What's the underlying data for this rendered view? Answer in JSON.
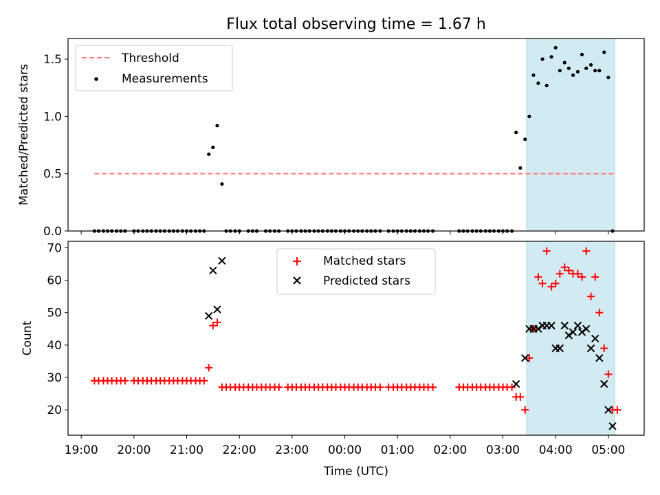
{
  "figure": {
    "title": "Flux total observing time = 1.67 h",
    "time_ticks": [
      "19:00",
      "20:00",
      "21:00",
      "22:00",
      "23:00",
      "00:00",
      "01:00",
      "02:00",
      "03:00",
      "04:00",
      "05:00"
    ],
    "time_tick_hours": [
      19,
      20,
      21,
      22,
      23,
      24,
      25,
      26,
      27,
      28,
      29
    ],
    "xlabel": "Time (UTC)",
    "xlim_hours": [
      18.75,
      29.68
    ],
    "shade_hours": [
      27.45,
      29.12
    ],
    "colors": {
      "shade": "#add8e6",
      "threshold": "#ff7b7b",
      "matched": "#ff0000",
      "predicted": "#000000",
      "measurement": "#000000"
    }
  },
  "chart_data": [
    {
      "type": "scatter",
      "ylabel": "Matched/Predicted stars",
      "ylim": [
        0,
        1.68
      ],
      "yticks": [
        "0.0",
        "0.5",
        "1.0",
        "1.5"
      ],
      "ytick_values": [
        0,
        0.5,
        1.0,
        1.5
      ],
      "legend_placement": "top-left",
      "threshold": {
        "name": "Threshold",
        "y": 0.5,
        "x_range_hours": [
          19.25,
          29.12
        ]
      },
      "series": [
        {
          "name": "Measurements",
          "points": [
            [
              19.25,
              0
            ],
            [
              19.33,
              0
            ],
            [
              19.42,
              0
            ],
            [
              19.5,
              0
            ],
            [
              19.58,
              0
            ],
            [
              19.67,
              0
            ],
            [
              19.75,
              0
            ],
            [
              19.83,
              0
            ],
            [
              20.0,
              0
            ],
            [
              20.08,
              0
            ],
            [
              20.17,
              0
            ],
            [
              20.25,
              0
            ],
            [
              20.33,
              0
            ],
            [
              20.42,
              0
            ],
            [
              20.5,
              0
            ],
            [
              20.58,
              0
            ],
            [
              20.67,
              0
            ],
            [
              20.75,
              0
            ],
            [
              20.83,
              0
            ],
            [
              20.92,
              0
            ],
            [
              21.0,
              0
            ],
            [
              21.08,
              0
            ],
            [
              21.17,
              0
            ],
            [
              21.25,
              0
            ],
            [
              21.33,
              0
            ],
            [
              21.42,
              0.67
            ],
            [
              21.5,
              0.73
            ],
            [
              21.58,
              0.92
            ],
            [
              21.67,
              0.41
            ],
            [
              21.75,
              0
            ],
            [
              21.83,
              0
            ],
            [
              21.92,
              0
            ],
            [
              22.0,
              0
            ],
            [
              22.17,
              0
            ],
            [
              22.25,
              0
            ],
            [
              22.33,
              0
            ],
            [
              22.5,
              0
            ],
            [
              22.58,
              0
            ],
            [
              22.67,
              0
            ],
            [
              22.75,
              0
            ],
            [
              22.92,
              0
            ],
            [
              23.0,
              0
            ],
            [
              23.08,
              0
            ],
            [
              23.17,
              0
            ],
            [
              23.25,
              0
            ],
            [
              23.33,
              0
            ],
            [
              23.42,
              0
            ],
            [
              23.5,
              0
            ],
            [
              23.58,
              0
            ],
            [
              23.67,
              0
            ],
            [
              23.75,
              0
            ],
            [
              23.83,
              0
            ],
            [
              23.92,
              0
            ],
            [
              24.0,
              0
            ],
            [
              24.08,
              0
            ],
            [
              24.17,
              0
            ],
            [
              24.25,
              0
            ],
            [
              24.33,
              0
            ],
            [
              24.42,
              0
            ],
            [
              24.5,
              0
            ],
            [
              24.58,
              0
            ],
            [
              24.67,
              0
            ],
            [
              24.83,
              0
            ],
            [
              24.92,
              0
            ],
            [
              25.0,
              0
            ],
            [
              25.08,
              0
            ],
            [
              25.17,
              0
            ],
            [
              25.25,
              0
            ],
            [
              25.33,
              0
            ],
            [
              25.42,
              0
            ],
            [
              25.5,
              0
            ],
            [
              25.58,
              0
            ],
            [
              25.67,
              0
            ],
            [
              26.17,
              0
            ],
            [
              26.25,
              0
            ],
            [
              26.33,
              0
            ],
            [
              26.42,
              0
            ],
            [
              26.5,
              0
            ],
            [
              26.58,
              0
            ],
            [
              26.67,
              0
            ],
            [
              26.75,
              0
            ],
            [
              26.83,
              0
            ],
            [
              26.92,
              0
            ],
            [
              27.0,
              0
            ],
            [
              27.08,
              0
            ],
            [
              27.17,
              0
            ],
            [
              27.25,
              0.86
            ],
            [
              27.33,
              0.55
            ],
            [
              27.42,
              0.8
            ],
            [
              27.5,
              1.0
            ],
            [
              27.58,
              1.36
            ],
            [
              27.67,
              1.29
            ],
            [
              27.75,
              1.5
            ],
            [
              27.83,
              1.27
            ],
            [
              27.92,
              1.52
            ],
            [
              28.0,
              1.6
            ],
            [
              28.08,
              1.4
            ],
            [
              28.17,
              1.47
            ],
            [
              28.25,
              1.42
            ],
            [
              28.33,
              1.36
            ],
            [
              28.42,
              1.39
            ],
            [
              28.5,
              1.54
            ],
            [
              28.58,
              1.42
            ],
            [
              28.67,
              1.45
            ],
            [
              28.75,
              1.4
            ],
            [
              28.83,
              1.4
            ],
            [
              28.92,
              1.56
            ],
            [
              29.0,
              1.34
            ],
            [
              29.08,
              0
            ]
          ]
        }
      ]
    },
    {
      "type": "scatter",
      "ylabel": "Count",
      "ylim": [
        12.2,
        72
      ],
      "yticks": [
        "20",
        "30",
        "40",
        "50",
        "60",
        "70"
      ],
      "ytick_values": [
        20,
        30,
        40,
        50,
        60,
        70
      ],
      "legend_placement": "top-center",
      "series": [
        {
          "name": "Matched stars",
          "marker": "+",
          "points": [
            [
              19.25,
              29
            ],
            [
              19.33,
              29
            ],
            [
              19.42,
              29
            ],
            [
              19.5,
              29
            ],
            [
              19.58,
              29
            ],
            [
              19.67,
              29
            ],
            [
              19.75,
              29
            ],
            [
              19.83,
              29
            ],
            [
              20.0,
              29
            ],
            [
              20.08,
              29
            ],
            [
              20.17,
              29
            ],
            [
              20.25,
              29
            ],
            [
              20.33,
              29
            ],
            [
              20.42,
              29
            ],
            [
              20.5,
              29
            ],
            [
              20.58,
              29
            ],
            [
              20.67,
              29
            ],
            [
              20.75,
              29
            ],
            [
              20.83,
              29
            ],
            [
              20.92,
              29
            ],
            [
              21.0,
              29
            ],
            [
              21.08,
              29
            ],
            [
              21.17,
              29
            ],
            [
              21.25,
              29
            ],
            [
              21.33,
              29
            ],
            [
              21.42,
              33
            ],
            [
              21.5,
              46
            ],
            [
              21.58,
              47
            ],
            [
              21.67,
              27
            ],
            [
              21.75,
              27
            ],
            [
              21.83,
              27
            ],
            [
              21.92,
              27
            ],
            [
              22.0,
              27
            ],
            [
              22.08,
              27
            ],
            [
              22.17,
              27
            ],
            [
              22.25,
              27
            ],
            [
              22.33,
              27
            ],
            [
              22.42,
              27
            ],
            [
              22.5,
              27
            ],
            [
              22.58,
              27
            ],
            [
              22.67,
              27
            ],
            [
              22.75,
              27
            ],
            [
              22.92,
              27
            ],
            [
              23.0,
              27
            ],
            [
              23.08,
              27
            ],
            [
              23.17,
              27
            ],
            [
              23.25,
              27
            ],
            [
              23.33,
              27
            ],
            [
              23.42,
              27
            ],
            [
              23.5,
              27
            ],
            [
              23.58,
              27
            ],
            [
              23.67,
              27
            ],
            [
              23.75,
              27
            ],
            [
              23.83,
              27
            ],
            [
              23.92,
              27
            ],
            [
              24.0,
              27
            ],
            [
              24.08,
              27
            ],
            [
              24.17,
              27
            ],
            [
              24.25,
              27
            ],
            [
              24.33,
              27
            ],
            [
              24.42,
              27
            ],
            [
              24.5,
              27
            ],
            [
              24.58,
              27
            ],
            [
              24.67,
              27
            ],
            [
              24.83,
              27
            ],
            [
              24.92,
              27
            ],
            [
              25.0,
              27
            ],
            [
              25.08,
              27
            ],
            [
              25.17,
              27
            ],
            [
              25.25,
              27
            ],
            [
              25.33,
              27
            ],
            [
              25.42,
              27
            ],
            [
              25.5,
              27
            ],
            [
              25.58,
              27
            ],
            [
              25.67,
              27
            ],
            [
              26.17,
              27
            ],
            [
              26.25,
              27
            ],
            [
              26.33,
              27
            ],
            [
              26.42,
              27
            ],
            [
              26.5,
              27
            ],
            [
              26.58,
              27
            ],
            [
              26.67,
              27
            ],
            [
              26.75,
              27
            ],
            [
              26.83,
              27
            ],
            [
              26.92,
              27
            ],
            [
              27.0,
              27
            ],
            [
              27.08,
              27
            ],
            [
              27.17,
              27
            ],
            [
              27.25,
              24
            ],
            [
              27.33,
              24
            ],
            [
              27.42,
              20
            ],
            [
              27.5,
              36
            ],
            [
              27.58,
              45
            ],
            [
              27.67,
              61
            ],
            [
              27.75,
              59
            ],
            [
              27.83,
              69
            ],
            [
              27.92,
              58
            ],
            [
              28.0,
              59
            ],
            [
              28.08,
              62
            ],
            [
              28.17,
              64
            ],
            [
              28.25,
              63
            ],
            [
              28.33,
              62
            ],
            [
              28.42,
              62
            ],
            [
              28.5,
              61
            ],
            [
              28.58,
              69
            ],
            [
              28.67,
              55
            ],
            [
              28.75,
              61
            ],
            [
              28.83,
              50
            ],
            [
              28.92,
              39
            ],
            [
              29.0,
              31
            ],
            [
              29.08,
              20
            ],
            [
              29.17,
              20
            ]
          ]
        },
        {
          "name": "Predicted stars",
          "marker": "x",
          "points": [
            [
              21.42,
              49
            ],
            [
              21.5,
              63
            ],
            [
              21.58,
              51
            ],
            [
              21.67,
              66
            ],
            [
              27.25,
              28
            ],
            [
              27.42,
              36
            ],
            [
              27.5,
              45
            ],
            [
              27.58,
              45
            ],
            [
              27.67,
              45
            ],
            [
              27.75,
              46
            ],
            [
              27.83,
              46
            ],
            [
              27.92,
              46
            ],
            [
              28.0,
              39
            ],
            [
              28.08,
              39
            ],
            [
              28.17,
              46
            ],
            [
              28.25,
              43
            ],
            [
              28.33,
              44
            ],
            [
              28.42,
              46
            ],
            [
              28.5,
              44
            ],
            [
              28.58,
              45
            ],
            [
              28.67,
              39
            ],
            [
              28.75,
              42
            ],
            [
              28.83,
              36
            ],
            [
              28.92,
              28
            ],
            [
              29.0,
              20
            ],
            [
              29.08,
              15
            ]
          ]
        }
      ]
    }
  ]
}
